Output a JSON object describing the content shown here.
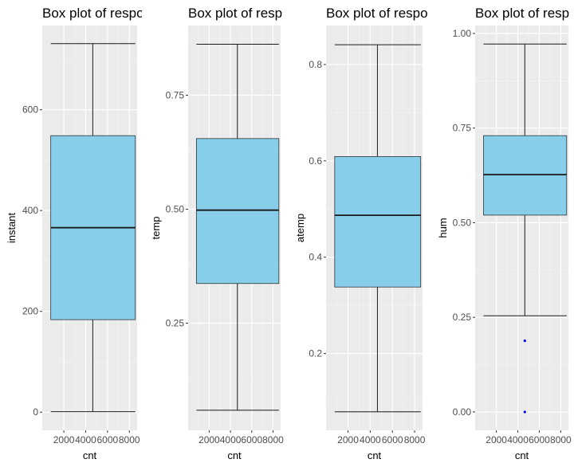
{
  "chart_data": [
    {
      "type": "boxplot",
      "title": "Box plot of respo",
      "xlabel": "cnt",
      "ylabel": "instant",
      "x_ticks": [
        "2000",
        "4000",
        "6000",
        "8000"
      ],
      "xlim": [
        22,
        8714
      ],
      "ylim": [
        -36,
        767
      ],
      "y_ticks": [
        0,
        200,
        400,
        600
      ],
      "y_tick_labels": [
        "0",
        "200",
        "400",
        "600"
      ],
      "box": {
        "whisker_low": 1,
        "q1": 183.5,
        "median": 366,
        "q3": 548.5,
        "whisker_high": 731
      },
      "box_x": {
        "left": 800,
        "right": 8550,
        "center": 4650
      },
      "outliers": [],
      "box_fill": "#87ceeb",
      "outlier_color": "#0000ff"
    },
    {
      "type": "boxplot",
      "title": "Box plot of resp",
      "xlabel": "cnt",
      "ylabel": "temp",
      "x_ticks": [
        "2000",
        "4000",
        "6000",
        "8000"
      ],
      "xlim": [
        22,
        8714
      ],
      "ylim": [
        0.0149,
        0.903
      ],
      "y_ticks": [
        0.25,
        0.5,
        0.75
      ],
      "y_tick_labels": [
        "0.25",
        "0.50",
        "0.75"
      ],
      "box": {
        "whisker_low": 0.059,
        "q1": 0.337,
        "median": 0.498,
        "q3": 0.655,
        "whisker_high": 0.862
      },
      "box_x": {
        "left": 800,
        "right": 8550,
        "center": 4650
      },
      "outliers": [],
      "box_fill": "#87ceeb",
      "outlier_color": "#0000ff"
    },
    {
      "type": "boxplot",
      "title": "Box plot of respo",
      "xlabel": "cnt",
      "ylabel": "atemp",
      "x_ticks": [
        "2000",
        "4000",
        "6000",
        "8000"
      ],
      "xlim": [
        22,
        8714
      ],
      "ylim": [
        0.0405,
        0.881
      ],
      "y_ticks": [
        0.2,
        0.4,
        0.6,
        0.8
      ],
      "y_tick_labels": [
        "0.2",
        "0.4",
        "0.6",
        "0.8"
      ],
      "box": {
        "whisker_low": 0.079,
        "q1": 0.338,
        "median": 0.487,
        "q3": 0.609,
        "whisker_high": 0.841
      },
      "box_x": {
        "left": 800,
        "right": 8550,
        "center": 4650
      },
      "outliers": [],
      "box_fill": "#87ceeb",
      "outlier_color": "#0000ff"
    },
    {
      "type": "boxplot",
      "title": "Box plot of resp",
      "xlabel": "cnt",
      "ylabel": "hum",
      "x_ticks": [
        "2000",
        "4000",
        "6000",
        "8000"
      ],
      "xlim": [
        22,
        8714
      ],
      "ylim": [
        -0.0486,
        1.021
      ],
      "y_ticks": [
        0,
        0.25,
        0.5,
        0.75,
        1.0
      ],
      "y_tick_labels": [
        "0.00",
        "0.25",
        "0.50",
        "0.75",
        "1.00"
      ],
      "box": {
        "whisker_low": 0.254,
        "q1": 0.52,
        "median": 0.627,
        "q3": 0.73,
        "whisker_high": 0.972
      },
      "box_x": {
        "left": 800,
        "right": 8550,
        "center": 4650
      },
      "outliers": [
        0.188,
        0.0
      ],
      "box_fill": "#87ceeb",
      "outlier_color": "#0000ff"
    }
  ]
}
